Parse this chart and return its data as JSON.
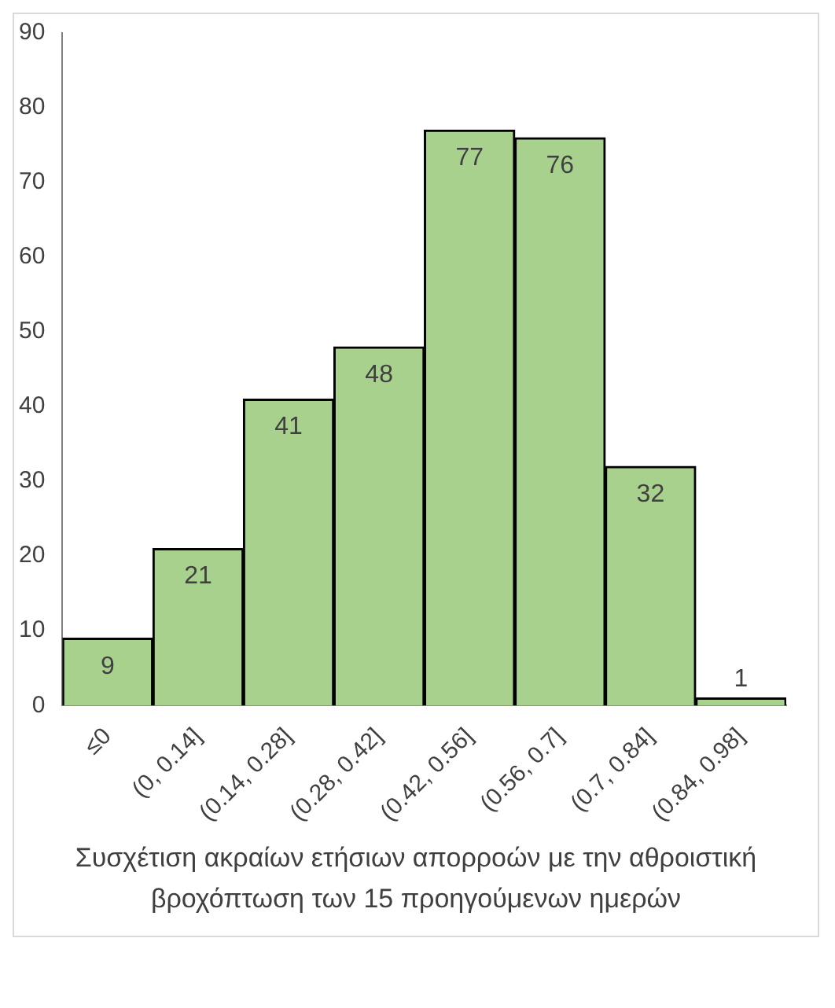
{
  "chart_data": {
    "type": "bar",
    "xlabel": "Συσχέτιση ακραίων ετήσιων απορροών με την αθροιστική βροχόπτωση των 15 προηγούμενων ημερών",
    "categories": [
      "≤0",
      "(0, 0.14]",
      "(0.14, 0.28]",
      "(0.28, 0.42]",
      "(0.42, 0.56]",
      "(0.56, 0.7]",
      "(0.7, 0.84]",
      "(0.84, 0.98]"
    ],
    "values": [
      9,
      21,
      41,
      48,
      77,
      76,
      32,
      1
    ],
    "color": "#a9d18e",
    "ylim": [
      0,
      90
    ],
    "yticks": [
      0,
      10,
      20,
      30,
      40,
      50,
      60,
      70,
      80,
      90
    ],
    "grid": false,
    "data_labels": true
  }
}
